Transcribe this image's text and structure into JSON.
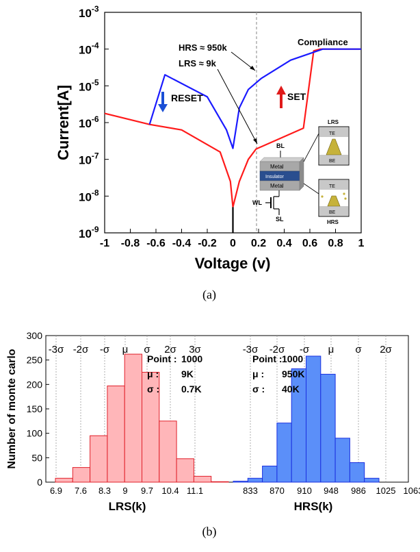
{
  "chart_data": [
    {
      "type": "line",
      "caption": "(a)",
      "xlabel": "Voltage (v)",
      "ylabel": "Current[A]",
      "xlim": [
        -1,
        1
      ],
      "ylim_exp": [
        -9,
        -3
      ],
      "log_y": true,
      "x_ticks": [
        "-1",
        "-0.8",
        "-0.6",
        "-0.4",
        "-0.2",
        "0",
        "0.2",
        "0.4",
        "0.6",
        "0.8",
        "1"
      ],
      "y_tick_exponents": [
        "-3",
        "-4",
        "-5",
        "-6",
        "-7",
        "-8",
        "-9"
      ],
      "y_tick_base": "10",
      "series": [
        {
          "color": "#ff1a1a",
          "points": [
            [
              -1,
              -5.75
            ],
            [
              -0.65,
              -6.05
            ],
            [
              -0.4,
              -6.2
            ],
            [
              -0.1,
              -6.8
            ],
            [
              -0.02,
              -7.6
            ],
            [
              0,
              -8.3
            ],
            [
              0.05,
              -7.6
            ],
            [
              0.12,
              -7.0
            ],
            [
              0.18,
              -6.72
            ],
            [
              0.55,
              -6.15
            ],
            [
              0.63,
              -4.05
            ],
            [
              0.68,
              -4.0
            ],
            [
              1,
              -4.0
            ]
          ]
        },
        {
          "color": "#1a1aff",
          "points": [
            [
              -0.65,
              -6.05
            ],
            [
              -0.53,
              -4.7
            ],
            [
              -0.2,
              -5.3
            ],
            [
              -0.05,
              -6.2
            ],
            [
              0,
              -6.7
            ],
            [
              0.05,
              -5.6
            ],
            [
              0.12,
              -5.1
            ],
            [
              0.22,
              -4.8
            ],
            [
              0.45,
              -4.3
            ],
            [
              0.7,
              -4.0
            ],
            [
              1,
              -4.0
            ]
          ]
        },
        {
          "color": "#000000",
          "points": [
            [
              0,
              -8.3
            ],
            [
              0,
              -9
            ]
          ]
        }
      ],
      "annotations": {
        "reset": "RESET",
        "set": "SET",
        "compliance": "Compliance",
        "hrs": "HRS ≈ 950k",
        "lrs": "LRS ≈ 9k"
      },
      "inset": {
        "bl": "BL",
        "wl": "WL",
        "sl": "SL",
        "metal_top": "Metal",
        "insulator": "Insulator",
        "metal_bottom": "Metal",
        "lrs_title": "LRS",
        "hrs_title": "HRS",
        "te": "TE",
        "be": "BE"
      }
    },
    {
      "type": "bar",
      "caption": "(b)",
      "ylabel": "Number of monte carlo",
      "ylim": [
        0,
        300
      ],
      "y_ticks": [
        "0",
        "50",
        "100",
        "150",
        "200",
        "250",
        "300"
      ],
      "panels": [
        {
          "xlabel": "LRS(k)",
          "color": "#ffb6b9",
          "edge_color": "#e0202a",
          "values": [
            8,
            30,
            95,
            197,
            262,
            225,
            125,
            48,
            12,
            1
          ],
          "x_tick_labels": [
            "6.9",
            "7.6",
            "8.3",
            "9",
            "9.7",
            "10.4",
            "11.1"
          ],
          "sigma_labels": [
            "-3σ",
            "-2σ",
            "-σ",
            "μ",
            "σ",
            "2σ",
            "3σ"
          ],
          "stats": [
            [
              "Point :",
              "1000"
            ],
            [
              "μ :",
              "9K"
            ],
            [
              "σ :",
              "0.7K"
            ]
          ]
        },
        {
          "xlabel": "HRS(k)",
          "color": "#5b8ff9",
          "edge_color": "#1a2fe0",
          "values": [
            2,
            8,
            33,
            121,
            232,
            258,
            221,
            90,
            40,
            8
          ],
          "x_tick_labels": [
            "833",
            "870",
            "910",
            "948",
            "986",
            "1025",
            "1063"
          ],
          "sigma_labels": [
            "-3σ",
            "-2σ",
            "-σ",
            "μ",
            "σ",
            "2σ",
            "3σ"
          ],
          "stats": [
            [
              "Point :",
              "1000"
            ],
            [
              "μ :",
              "950K"
            ],
            [
              "σ :",
              "40K"
            ]
          ]
        }
      ]
    }
  ]
}
